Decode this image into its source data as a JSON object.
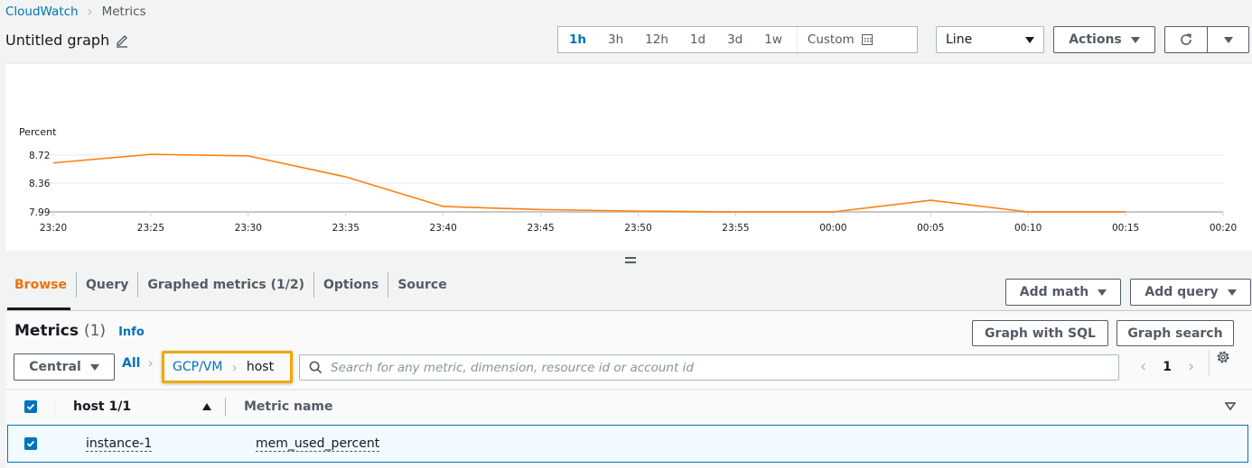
{
  "breadcrumb": {
    "items": [
      "CloudWatch",
      "Metrics"
    ]
  },
  "graph": {
    "title": "Untitled graph"
  },
  "time_range": {
    "options": [
      "1h",
      "3h",
      "12h",
      "1d",
      "3d",
      "1w"
    ],
    "selected": "1h",
    "custom_label": "Custom"
  },
  "toolbar": {
    "chart_type": "Line",
    "actions_label": "Actions"
  },
  "chart_data": {
    "type": "line",
    "title": "",
    "ylabel": "Percent",
    "xlabel": "",
    "x_ticks": [
      "23:20",
      "23:25",
      "23:30",
      "23:35",
      "23:40",
      "23:45",
      "23:50",
      "23:55",
      "00:00",
      "00:05",
      "00:10",
      "00:15",
      "00:20"
    ],
    "y_ticks": [
      7.99,
      8.36,
      8.72
    ],
    "ylim": [
      7.99,
      8.72
    ],
    "grid": true,
    "series": [
      {
        "name": "mem_used_percent",
        "color": "#ff7f0e",
        "x": [
          "23:20",
          "23:25",
          "23:30",
          "23:35",
          "23:40",
          "23:45",
          "23:50",
          "23:55",
          "00:00",
          "00:05",
          "00:10",
          "00:15"
        ],
        "values": [
          8.62,
          8.73,
          8.71,
          8.44,
          8.06,
          8.02,
          8.0,
          7.99,
          7.99,
          8.14,
          7.99,
          7.99
        ]
      }
    ]
  },
  "tabs": [
    {
      "label": "Browse",
      "active": true
    },
    {
      "label": "Query",
      "active": false
    },
    {
      "label": "Graphed metrics (1/2)",
      "active": false
    },
    {
      "label": "Options",
      "active": false
    },
    {
      "label": "Source",
      "active": false
    }
  ],
  "panel_actions": {
    "add_math": "Add math",
    "add_query": "Add query"
  },
  "metrics": {
    "title": "Metrics",
    "count": "(1)",
    "info": "Info",
    "graph_with_sql": "Graph with SQL",
    "graph_search": "Graph search",
    "region": "Central",
    "path": {
      "all": "All",
      "namespace": "GCP/VM",
      "dimension": "host"
    },
    "search": {
      "value": "",
      "placeholder": "Search for any metric, dimension, resource id or account id"
    },
    "pagination": {
      "page": "1"
    },
    "table": {
      "columns": [
        "host 1/1",
        "Metric name"
      ],
      "rows": [
        {
          "checked": true,
          "host": "instance-1",
          "metric_name": "mem_used_percent"
        }
      ]
    }
  },
  "colors": {
    "link": "#0073bb",
    "active_tab": "#ec7211",
    "series": "#ff7f0e",
    "highlight_border": "#f0a800",
    "selected_row_bg": "#f1faff"
  }
}
